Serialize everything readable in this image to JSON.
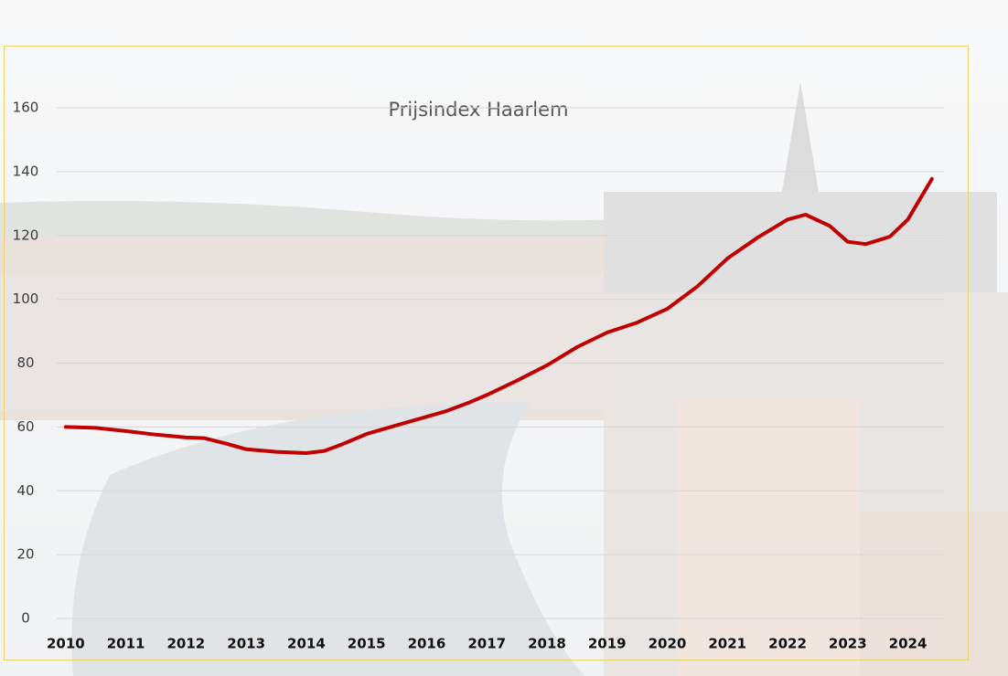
{
  "chart_data": {
    "type": "line",
    "title": "Prijsindex Haarlem",
    "series": [
      {
        "name": "Prijsindex",
        "color": "#c00000",
        "x": [
          2010,
          2010.5,
          2011,
          2011.5,
          2012,
          2012.3,
          2012.7,
          2013,
          2013.5,
          2014,
          2014.3,
          2014.6,
          2015,
          2015.5,
          2016,
          2016.3,
          2016.7,
          2017,
          2017.5,
          2018,
          2018.5,
          2019,
          2019.5,
          2020,
          2020.5,
          2021,
          2021.5,
          2022,
          2022.3,
          2022.7,
          2023,
          2023.3,
          2023.7,
          2024,
          2024.4
        ],
        "values": [
          60,
          59.7,
          58.7,
          57.6,
          56.7,
          56.5,
          54.6,
          53,
          52.2,
          51.8,
          52.5,
          54.6,
          57.8,
          60.5,
          63.2,
          64.8,
          67.6,
          70,
          74.5,
          79.3,
          85,
          89.6,
          92.7,
          97,
          104,
          112.8,
          119.3,
          125,
          126.5,
          123,
          118,
          117.3,
          119.6,
          125,
          137.7
        ]
      }
    ],
    "xlim": [
      2009.85,
      2024.6
    ],
    "xticks": [
      2010,
      2011,
      2012,
      2013,
      2014,
      2015,
      2016,
      2017,
      2018,
      2019,
      2020,
      2021,
      2022,
      2023,
      2024
    ],
    "ylim": [
      0,
      160
    ],
    "yticks": [
      0,
      20,
      40,
      60,
      80,
      100,
      120,
      140,
      160
    ],
    "grid": true
  }
}
